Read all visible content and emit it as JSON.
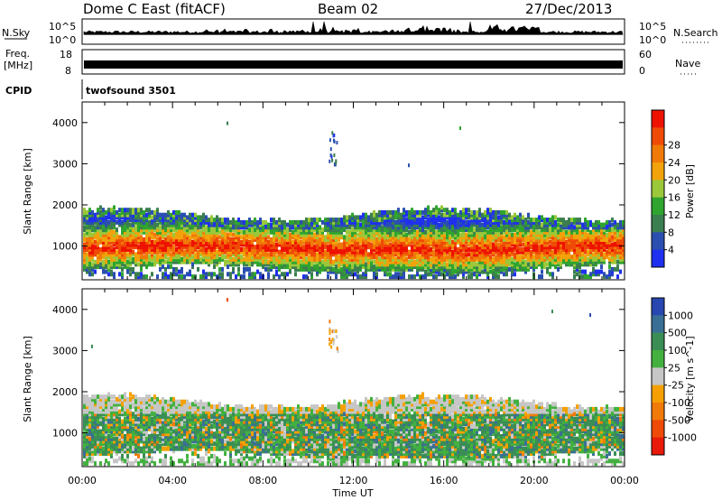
{
  "header": {
    "title": "Dome C East (fitACF)",
    "beam": "Beam 02",
    "date": "27/Dec/2013"
  },
  "nsky_panel": {
    "label": "N.Sky",
    "right_label": "N.Search",
    "left_ticks": [
      "10^5",
      "10^0"
    ],
    "right_ticks": [
      "10^5",
      "10^0"
    ]
  },
  "freq_panel": {
    "label_line1": "Freq.",
    "label_line2": "[MHz]",
    "left_ticks": [
      "18",
      "8"
    ],
    "right_ticks": [
      "60",
      "0"
    ],
    "right_label": "Nave"
  },
  "cpid": {
    "label": "CPID",
    "value": "twofsound 3501"
  },
  "chart_data": [
    {
      "type": "heatmap",
      "name": "power",
      "ylabel": "Slant Range [km]",
      "xlabel": "Time UT",
      "x_ticks": [
        "00:00",
        "04:00",
        "08:00",
        "12:00",
        "16:00",
        "20:00",
        "00:00"
      ],
      "x_range_hours": [
        0,
        24
      ],
      "y_ticks": [
        1000,
        2000,
        3000,
        4000
      ],
      "ylim": [
        180,
        4500
      ],
      "colorbar_label": "Power [dB]",
      "colorbar_ticks": [
        4,
        8,
        12,
        16,
        20,
        24,
        28
      ],
      "colorbar_colors": [
        "#1f30ee",
        "#2a4fb0",
        "#3b7e4f",
        "#2fa52f",
        "#9bc83a",
        "#f2a20a",
        "#f07a08",
        "#ef4a06",
        "#ee1200"
      ],
      "scatter_band_km": [
        300,
        1900
      ],
      "strongest_band_km": [
        600,
        1500
      ]
    },
    {
      "type": "heatmap",
      "name": "velocity",
      "ylabel": "Slant Range [km]",
      "xlabel": "Time UT",
      "x_ticks": [
        "00:00",
        "04:00",
        "08:00",
        "12:00",
        "16:00",
        "20:00",
        "00:00"
      ],
      "x_range_hours": [
        0,
        24
      ],
      "y_ticks": [
        1000,
        2000,
        3000,
        4000
      ],
      "ylim": [
        180,
        4500
      ],
      "colorbar_label": "Velocity [m s^-1]",
      "colorbar_ticks": [
        1000,
        500,
        100,
        25,
        -25,
        -100,
        -500,
        -1000
      ],
      "colorbar_colors": [
        "#2847b0",
        "#3a6f95",
        "#3a8e55",
        "#43b140",
        "#c6c6c6",
        "#f5a000",
        "#f07a0a",
        "#ee4a08",
        "#e91a0a"
      ]
    }
  ],
  "time_axis": {
    "label": "Time UT",
    "ticks": [
      "00:00",
      "04:00",
      "08:00",
      "12:00",
      "16:00",
      "20:00",
      "00:00"
    ]
  },
  "colors": {
    "frame": "#000000",
    "background": "#ffffff"
  }
}
